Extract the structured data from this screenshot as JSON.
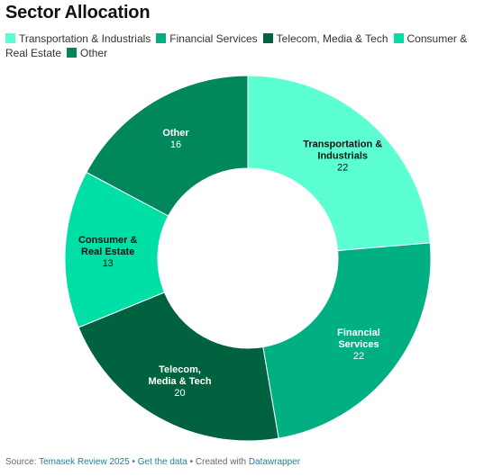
{
  "title": "Sector Allocation",
  "chart_data": {
    "type": "pie",
    "title": "Sector Allocation",
    "legend_position": "top",
    "categories": [
      "Transportation & Industrials",
      "Financial Services",
      "Telecom, Media & Tech",
      "Consumer & Real Estate",
      "Other"
    ],
    "values": [
      22,
      22,
      20,
      13,
      16
    ],
    "colors": [
      "#5cffd1",
      "#00b082",
      "#00623e",
      "#00dfa6",
      "#00875b"
    ],
    "label_colors": [
      "#111111",
      "#ffffff",
      "#ffffff",
      "#111111",
      "#ffffff"
    ],
    "segment_labels": [
      [
        "Transportation &",
        "Industrials"
      ],
      [
        "Financial",
        "Services"
      ],
      [
        "Telecom,",
        "Media & Tech"
      ],
      [
        "Consumer &",
        "Real Estate"
      ],
      [
        "Other"
      ]
    ],
    "donut": true
  },
  "footer": {
    "source_prefix": "Source:",
    "source_link": "Temasek Review 2025",
    "separator": "•",
    "data_link": "Get the data",
    "created_prefix": "Created with",
    "created_link": "Datawrapper"
  }
}
